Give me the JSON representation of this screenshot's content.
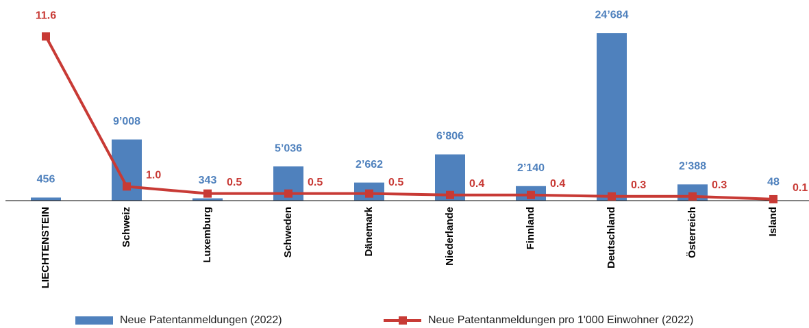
{
  "chart_data": {
    "type": "bar_line",
    "categories": [
      "LIECHTENSTEIN",
      "Schweiz",
      "Luxemburg",
      "Schweden",
      "Dänemark",
      "Niederlande",
      "Finnland",
      "Deutschland",
      "Österreich",
      "Island"
    ],
    "series": [
      {
        "name": "Neue Patentanmeldungen (2022)",
        "type": "bar",
        "color": "#4f81bd",
        "values": [
          456,
          9008,
          343,
          5036,
          2662,
          6806,
          2140,
          24684,
          2388,
          48
        ],
        "value_labels": [
          "456",
          "9’008",
          "343",
          "5’036",
          "2’662",
          "6’806",
          "2’140",
          "24’684",
          "2’388",
          "48"
        ]
      },
      {
        "name": "Neue Patentanmeldungen pro 1'000 Einwohner (2022)",
        "type": "line",
        "axis": "y2",
        "color": "#c83a35",
        "values": [
          11.6,
          1.0,
          0.5,
          0.5,
          0.5,
          0.4,
          0.4,
          0.3,
          0.3,
          0.1
        ],
        "value_labels": [
          "11.6",
          "1.0",
          "0.5",
          "0.5",
          "0.5",
          "0.4",
          "0.4",
          "0.3",
          "0.3",
          "0.1"
        ]
      }
    ],
    "ylim": [
      0,
      25000
    ],
    "y2lim": [
      0,
      12
    ]
  }
}
